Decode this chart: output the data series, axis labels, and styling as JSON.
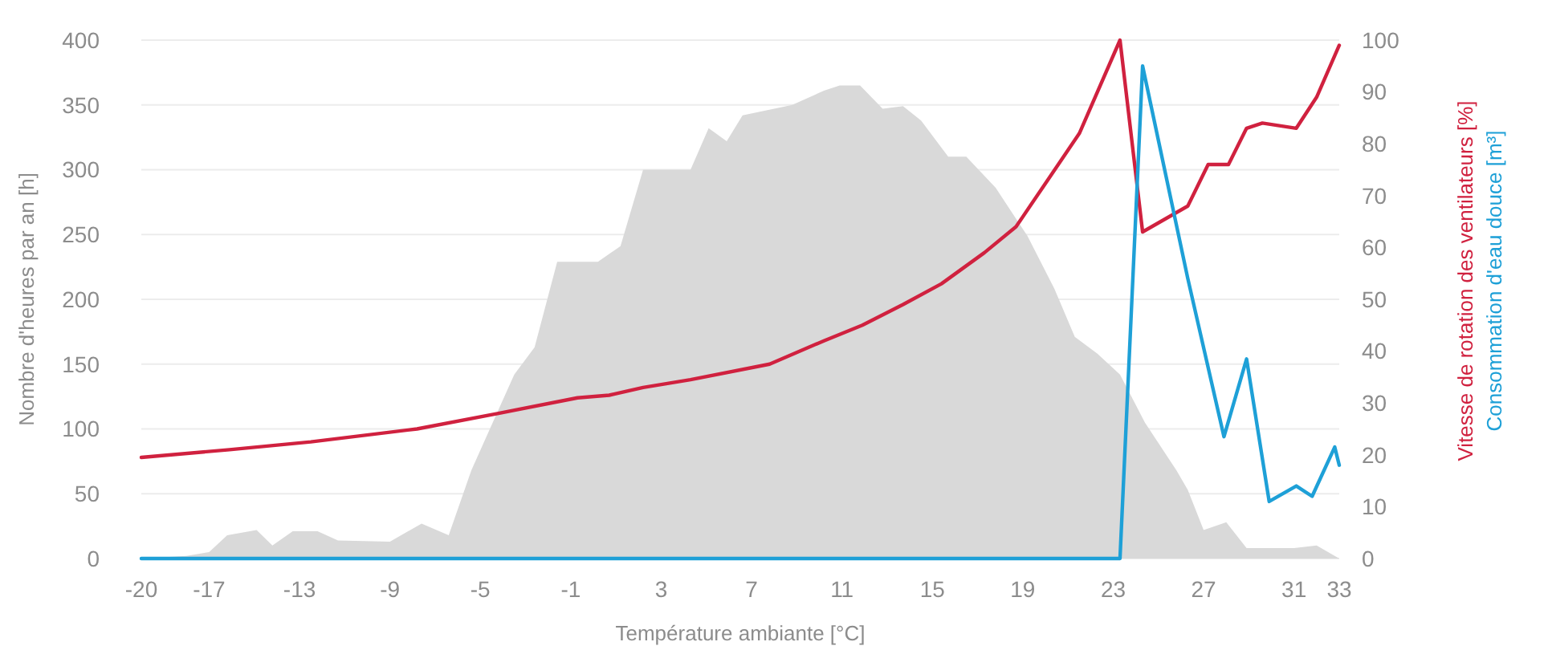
{
  "chart_data": {
    "type": "area",
    "xlabel": "Température ambiante [°C]",
    "ylabel": "Nombre d'heures par an [h]",
    "xlim": [
      -20,
      33
    ],
    "xticks": [
      -20,
      -17,
      -13,
      -9,
      -5,
      -1,
      3,
      7,
      11,
      15,
      19,
      23,
      27,
      31,
      33
    ],
    "ylim": [
      0,
      400
    ],
    "yticks": [
      0,
      50,
      100,
      150,
      200,
      250,
      300,
      350,
      400
    ],
    "y2lim": [
      0,
      100
    ],
    "y2ticks": [
      0,
      10,
      20,
      30,
      40,
      50,
      60,
      70,
      80,
      90,
      100
    ],
    "grid": "y",
    "series": [
      {
        "color": "#d9d9d9",
        "x": [
          -20,
          -18,
          -17,
          -16.2,
          -14.9,
          -14.2,
          -13.3,
          -12.2,
          -11.3,
          -9,
          -7.6,
          -6.4,
          -5.4,
          -3.5,
          -2.6,
          -1.6,
          0.2,
          1.2,
          2.2,
          4.3,
          5.1,
          5.9,
          6.6,
          8.8,
          10.2,
          10.9,
          11.8,
          12.8,
          13.7,
          14.5,
          15.7,
          16.5,
          17.8,
          19.2,
          20.4,
          21.3,
          22.3,
          23.3,
          24.4,
          25.8,
          26.3,
          27,
          28,
          28.9,
          31,
          32,
          33
        ],
        "values": [
          0,
          2,
          5,
          18,
          22,
          10,
          21,
          21,
          14,
          13,
          27,
          18,
          68,
          142,
          163,
          229,
          229,
          241,
          300,
          300,
          332,
          322,
          342,
          350,
          361,
          365,
          365,
          347,
          349,
          338,
          310,
          310,
          286,
          249,
          208,
          171,
          158,
          142,
          105,
          68,
          53,
          22,
          28,
          8,
          8,
          10,
          0
        ]
      },
      {
        "type": "line",
        "axis": "y2",
        "name": "Vitesse de rotation des ventilateurs [%]",
        "color": "#d0213f",
        "x": [
          -20,
          -16.1,
          -12.5,
          -7.8,
          -4.2,
          -0.7,
          0.7,
          2.2,
          4.3,
          7.8,
          10.2,
          11.9,
          13.7,
          15.4,
          17.3,
          18.7,
          20.1,
          21.5,
          23.3,
          24.3,
          26.3,
          27.2,
          28.1,
          28.9,
          29.6,
          31.1,
          32,
          33
        ],
        "values": [
          19.5,
          21,
          22.5,
          25,
          28,
          31,
          31.5,
          33,
          34.5,
          37.5,
          42,
          45,
          49,
          53,
          59,
          64,
          73,
          82,
          100,
          63,
          68,
          76,
          76,
          83,
          84,
          83,
          89,
          99
        ]
      },
      {
        "type": "line",
        "axis": "y2",
        "name": "Consommation d'eau douce [m³]",
        "color": "#1ea0d7",
        "x": [
          -20,
          23.3,
          24.3,
          26.3,
          27.9,
          28.9,
          29.9,
          31.1,
          31.8,
          32.8,
          33
        ],
        "values": [
          0,
          0,
          95,
          54,
          23.5,
          38.5,
          11,
          14,
          12,
          21.5,
          18
        ]
      }
    ]
  }
}
